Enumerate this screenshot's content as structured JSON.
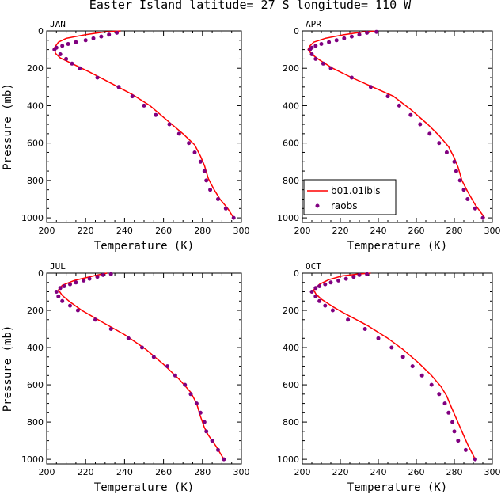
{
  "figure": {
    "title": "Easter Island  latitude= 27 S longitude= 110 W"
  },
  "colors": {
    "model": "#ff0000",
    "obs": "#800080",
    "axis": "#000000"
  },
  "legend": {
    "model_label": "b01.01ibis",
    "obs_label": "raobs",
    "panel": "APR"
  },
  "chart_data": [
    {
      "type": "line",
      "panel": "JAN",
      "xlabel": "Temperature (K)",
      "ylabel": "Pressure (mb)",
      "xlim": [
        200,
        300
      ],
      "ylim": [
        1025,
        0
      ],
      "y_inverted": true,
      "xticks": [
        200,
        220,
        240,
        260,
        280,
        300
      ],
      "yticks": [
        0,
        200,
        400,
        600,
        800,
        1000
      ],
      "series": [
        {
          "name": "b01.01ibis",
          "kind": "line",
          "points": [
            [
              238,
              0
            ],
            [
              230,
              5
            ],
            [
              220,
              20
            ],
            [
              210,
              40
            ],
            [
              206,
              60
            ],
            [
              204,
              90
            ],
            [
              204.5,
              120
            ],
            [
              207,
              145
            ],
            [
              212,
              170
            ],
            [
              222,
              220
            ],
            [
              234,
              285
            ],
            [
              244,
              340
            ],
            [
              253,
              400
            ],
            [
              262,
              480
            ],
            [
              270,
              550
            ],
            [
              276,
              610
            ],
            [
              279,
              670
            ],
            [
              281,
              720
            ],
            [
              283,
              790
            ],
            [
              286,
              850
            ],
            [
              289,
              900
            ],
            [
              293,
              950
            ],
            [
              296,
              1000
            ]
          ]
        },
        {
          "name": "raobs",
          "kind": "scatter",
          "points": [
            [
              236,
              10
            ],
            [
              232,
              20
            ],
            [
              228,
              30
            ],
            [
              224,
              40
            ],
            [
              220,
              50
            ],
            [
              215,
              60
            ],
            [
              211,
              70
            ],
            [
              208,
              80
            ],
            [
              205,
              90
            ],
            [
              204,
              100
            ],
            [
              207,
              125
            ],
            [
              210,
              150
            ],
            [
              213,
              175
            ],
            [
              217,
              200
            ],
            [
              226,
              250
            ],
            [
              237,
              300
            ],
            [
              244,
              350
            ],
            [
              250,
              400
            ],
            [
              256,
              450
            ],
            [
              263,
              500
            ],
            [
              268,
              550
            ],
            [
              273,
              600
            ],
            [
              276,
              650
            ],
            [
              279,
              700
            ],
            [
              281,
              750
            ],
            [
              282,
              800
            ],
            [
              284,
              850
            ],
            [
              288,
              900
            ],
            [
              292,
              950
            ],
            [
              296,
              1000
            ]
          ]
        }
      ]
    },
    {
      "type": "line",
      "panel": "APR",
      "xlabel": "Temperature (K)",
      "ylabel": "",
      "xlim": [
        200,
        300
      ],
      "ylim": [
        1025,
        0
      ],
      "y_inverted": true,
      "xticks": [
        200,
        220,
        240,
        260,
        280,
        300
      ],
      "yticks": [
        0,
        200,
        400,
        600,
        800,
        1000
      ],
      "series": [
        {
          "name": "b01.01ibis",
          "kind": "line",
          "points": [
            [
              240,
              0
            ],
            [
              232,
              5
            ],
            [
              222,
              20
            ],
            [
              212,
              40
            ],
            [
              206,
              60
            ],
            [
              204,
              80
            ],
            [
              203,
              100
            ],
            [
              205,
              125
            ],
            [
              209,
              155
            ],
            [
              216,
              200
            ],
            [
              226,
              250
            ],
            [
              237,
              300
            ],
            [
              248,
              350
            ],
            [
              257,
              420
            ],
            [
              266,
              500
            ],
            [
              272,
              560
            ],
            [
              277,
              620
            ],
            [
              280,
              680
            ],
            [
              282,
              730
            ],
            [
              284,
              800
            ],
            [
              287,
              860
            ],
            [
              291,
              930
            ],
            [
              296,
              1000
            ]
          ]
        },
        {
          "name": "raobs",
          "kind": "scatter",
          "points": [
            [
              239,
              5
            ],
            [
              234,
              10
            ],
            [
              230,
              20
            ],
            [
              226,
              30
            ],
            [
              222,
              40
            ],
            [
              218,
              50
            ],
            [
              214,
              60
            ],
            [
              210,
              70
            ],
            [
              207,
              80
            ],
            [
              205,
              90
            ],
            [
              204,
              100
            ],
            [
              205,
              125
            ],
            [
              207,
              150
            ],
            [
              211,
              175
            ],
            [
              215,
              200
            ],
            [
              226,
              250
            ],
            [
              236,
              300
            ],
            [
              245,
              350
            ],
            [
              251,
              400
            ],
            [
              257,
              450
            ],
            [
              262,
              500
            ],
            [
              267,
              550
            ],
            [
              272,
              600
            ],
            [
              276,
              650
            ],
            [
              280,
              700
            ],
            [
              281,
              750
            ],
            [
              283,
              800
            ],
            [
              285,
              850
            ],
            [
              287,
              900
            ],
            [
              291,
              950
            ],
            [
              295,
              1000
            ]
          ]
        }
      ]
    },
    {
      "type": "line",
      "panel": "JUL",
      "xlabel": "Temperature (K)",
      "ylabel": "Pressure (mb)",
      "xlim": [
        200,
        300
      ],
      "ylim": [
        1025,
        0
      ],
      "y_inverted": true,
      "xticks": [
        200,
        220,
        240,
        260,
        280,
        300
      ],
      "yticks": [
        0,
        200,
        400,
        600,
        800,
        1000
      ],
      "series": [
        {
          "name": "b01.01ibis",
          "kind": "line",
          "points": [
            [
              231,
              0
            ],
            [
              226,
              10
            ],
            [
              220,
              25
            ],
            [
              214,
              40
            ],
            [
              208,
              65
            ],
            [
              206,
              90
            ],
            [
              208,
              120
            ],
            [
              212,
              155
            ],
            [
              218,
              200
            ],
            [
              228,
              260
            ],
            [
              240,
              330
            ],
            [
              251,
              410
            ],
            [
              260,
              490
            ],
            [
              268,
              570
            ],
            [
              274,
              640
            ],
            [
              277,
              700
            ],
            [
              279,
              770
            ],
            [
              281,
              830
            ],
            [
              283,
              870
            ],
            [
              287,
              930
            ],
            [
              291,
              1000
            ]
          ]
        },
        {
          "name": "raobs",
          "kind": "scatter",
          "points": [
            [
              233,
              5
            ],
            [
              229,
              10
            ],
            [
              226,
              20
            ],
            [
              222,
              30
            ],
            [
              219,
              40
            ],
            [
              215,
              50
            ],
            [
              212,
              60
            ],
            [
              209,
              70
            ],
            [
              207,
              80
            ],
            [
              205,
              100
            ],
            [
              206,
              125
            ],
            [
              208,
              150
            ],
            [
              212,
              175
            ],
            [
              216,
              200
            ],
            [
              225,
              250
            ],
            [
              233,
              300
            ],
            [
              242,
              350
            ],
            [
              249,
              400
            ],
            [
              255,
              450
            ],
            [
              262,
              500
            ],
            [
              266,
              550
            ],
            [
              271,
              600
            ],
            [
              274,
              650
            ],
            [
              277,
              700
            ],
            [
              279,
              750
            ],
            [
              281,
              800
            ],
            [
              282,
              850
            ],
            [
              285,
              900
            ],
            [
              288,
              950
            ],
            [
              291,
              1000
            ]
          ]
        }
      ]
    },
    {
      "type": "line",
      "panel": "OCT",
      "xlabel": "Temperature (K)",
      "ylabel": "",
      "xlim": [
        200,
        300
      ],
      "ylim": [
        1025,
        0
      ],
      "y_inverted": true,
      "xticks": [
        200,
        220,
        240,
        260,
        280,
        300
      ],
      "yticks": [
        0,
        200,
        400,
        600,
        800,
        1000
      ],
      "series": [
        {
          "name": "b01.01ibis",
          "kind": "line",
          "points": [
            [
              236,
              0
            ],
            [
              229,
              5
            ],
            [
              221,
              15
            ],
            [
              214,
              35
            ],
            [
              209,
              60
            ],
            [
              206,
              90
            ],
            [
              207,
              110
            ],
            [
              210,
              140
            ],
            [
              216,
              180
            ],
            [
              222,
              215
            ],
            [
              234,
              280
            ],
            [
              245,
              350
            ],
            [
              253,
              410
            ],
            [
              261,
              480
            ],
            [
              268,
              550
            ],
            [
              273,
              610
            ],
            [
              276,
              660
            ],
            [
              278,
              710
            ],
            [
              281,
              780
            ],
            [
              284,
              850
            ],
            [
              287,
              920
            ],
            [
              291,
              1000
            ]
          ]
        },
        {
          "name": "raobs",
          "kind": "scatter",
          "points": [
            [
              234,
              5
            ],
            [
              230,
              10
            ],
            [
              227,
              20
            ],
            [
              223,
              30
            ],
            [
              219,
              40
            ],
            [
              215,
              50
            ],
            [
              212,
              60
            ],
            [
              209,
              70
            ],
            [
              207,
              80
            ],
            [
              205,
              100
            ],
            [
              207,
              125
            ],
            [
              209,
              150
            ],
            [
              212,
              175
            ],
            [
              216,
              200
            ],
            [
              224,
              250
            ],
            [
              233,
              300
            ],
            [
              240,
              350
            ],
            [
              247,
              400
            ],
            [
              253,
              450
            ],
            [
              258,
              500
            ],
            [
              263,
              550
            ],
            [
              268,
              600
            ],
            [
              272,
              650
            ],
            [
              275,
              700
            ],
            [
              277,
              750
            ],
            [
              279,
              800
            ],
            [
              280,
              850
            ],
            [
              282,
              900
            ],
            [
              286,
              950
            ],
            [
              291,
              1000
            ]
          ]
        }
      ]
    }
  ]
}
